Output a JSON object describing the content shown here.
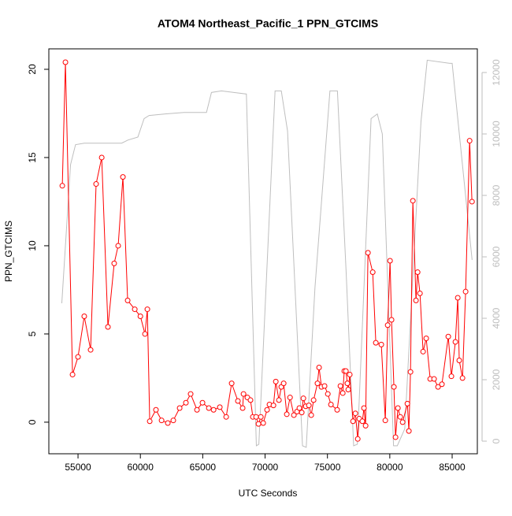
{
  "chart_data": {
    "type": "line",
    "title": "ATOM4 Northeast_Pacific_1 PPN_GTCIMS",
    "x_label": "UTC Seconds",
    "y_label": "PPN_GTCIMS",
    "xlim": [
      52660,
      87020
    ],
    "xticks": [
      55000,
      60000,
      65000,
      70000,
      75000,
      80000,
      85000
    ],
    "ylim": [
      -1.79,
      21.16
    ],
    "yticks": [
      0,
      5,
      10,
      15,
      20
    ],
    "y2lim": [
      -410,
      12770
    ],
    "y2ticks": [
      0,
      2000,
      4000,
      6000,
      8000,
      10000,
      12000
    ],
    "y2color": "#bebebe",
    "series": [
      {
        "color": "#bebebe",
        "axis": "y2",
        "markers": false,
        "x": [
          53700,
          54400,
          54800,
          55500,
          57000,
          58500,
          59000,
          59800,
          60300,
          60700,
          62000,
          63500,
          65300,
          65700,
          66500,
          67500,
          68500,
          69300,
          69500,
          70800,
          71300,
          71800,
          72400,
          73000,
          73300,
          74000,
          75200,
          75800,
          76500,
          77100,
          77400,
          78500,
          79000,
          79400,
          80300,
          80600,
          81200,
          82500,
          83000,
          84800,
          85000,
          86600
        ],
        "values": [
          4490,
          9000,
          9650,
          9700,
          9700,
          9700,
          9800,
          9900,
          10500,
          10600,
          10650,
          10700,
          10700,
          11350,
          11400,
          11350,
          11300,
          -150,
          -100,
          11400,
          11400,
          10100,
          5000,
          -150,
          -200,
          5000,
          11400,
          11400,
          5500,
          -150,
          -100,
          10500,
          10650,
          10000,
          -150,
          -150,
          400,
          10400,
          12400,
          12300,
          12300,
          5900
        ]
      },
      {
        "color": "#ff0000",
        "axis": "y",
        "markers": true,
        "x": [
          53740,
          53990,
          54560,
          55000,
          55500,
          56010,
          56450,
          56900,
          57400,
          57900,
          58220,
          58600,
          58980,
          59550,
          60000,
          60370,
          60560,
          60750,
          61250,
          61700,
          62200,
          62640,
          63150,
          63650,
          64030,
          64540,
          64980,
          65490,
          65870,
          66370,
          66880,
          67320,
          67820,
          68200,
          68270,
          68580,
          68830,
          69020,
          69280,
          69470,
          69660,
          69850,
          70160,
          70350,
          70670,
          70860,
          71110,
          71300,
          71490,
          71740,
          72000,
          72310,
          72560,
          72750,
          72940,
          73070,
          73260,
          73510,
          73700,
          73890,
          74200,
          74330,
          74520,
          74770,
          75030,
          75280,
          75780,
          76040,
          76230,
          76350,
          76480,
          76600,
          76670,
          76790,
          77050,
          77240,
          77430,
          77550,
          77800,
          77930,
          78060,
          78250,
          78630,
          78880,
          79320,
          79640,
          79830,
          80020,
          80140,
          80330,
          80460,
          80650,
          80840,
          81030,
          81410,
          81530,
          81660,
          81850,
          82100,
          82230,
          82420,
          82670,
          82920,
          83240,
          83550,
          83870,
          84180,
          84690,
          84940,
          85260,
          85450,
          85570,
          85830,
          86080,
          86400,
          86590
        ],
        "values": [
          13.4,
          20.4,
          2.7,
          3.7,
          6.0,
          4.1,
          13.5,
          15.0,
          5.4,
          9.0,
          10.0,
          13.9,
          6.9,
          6.4,
          6.0,
          5.0,
          6.4,
          0.05,
          0.7,
          0.1,
          -0.05,
          0.1,
          0.8,
          1.1,
          1.6,
          0.7,
          1.1,
          0.8,
          0.7,
          0.85,
          0.3,
          2.2,
          1.2,
          0.8,
          1.6,
          1.4,
          1.25,
          0.3,
          0.3,
          -0.1,
          0.3,
          -0.05,
          0.7,
          1.0,
          0.95,
          2.3,
          1.25,
          2.0,
          2.2,
          0.45,
          1.4,
          0.4,
          0.6,
          0.8,
          0.55,
          1.35,
          0.9,
          0.95,
          0.4,
          1.25,
          2.2,
          3.1,
          2.0,
          2.05,
          1.6,
          1.0,
          0.7,
          2.05,
          1.65,
          2.9,
          2.9,
          2.2,
          1.85,
          2.7,
          0.05,
          0.5,
          -0.95,
          0.2,
          0.05,
          0.8,
          -0.2,
          9.6,
          8.5,
          4.5,
          4.4,
          0.1,
          5.5,
          9.15,
          5.8,
          2.0,
          -0.85,
          0.8,
          0.3,
          0,
          1.05,
          -0.5,
          2.85,
          12.55,
          6.9,
          8.5,
          7.3,
          4.0,
          4.75,
          2.45,
          2.45,
          2.0,
          2.15,
          4.85,
          2.6,
          4.55,
          7.05,
          3.5,
          2.5,
          7.4,
          15.95,
          12.5
        ]
      }
    ]
  }
}
